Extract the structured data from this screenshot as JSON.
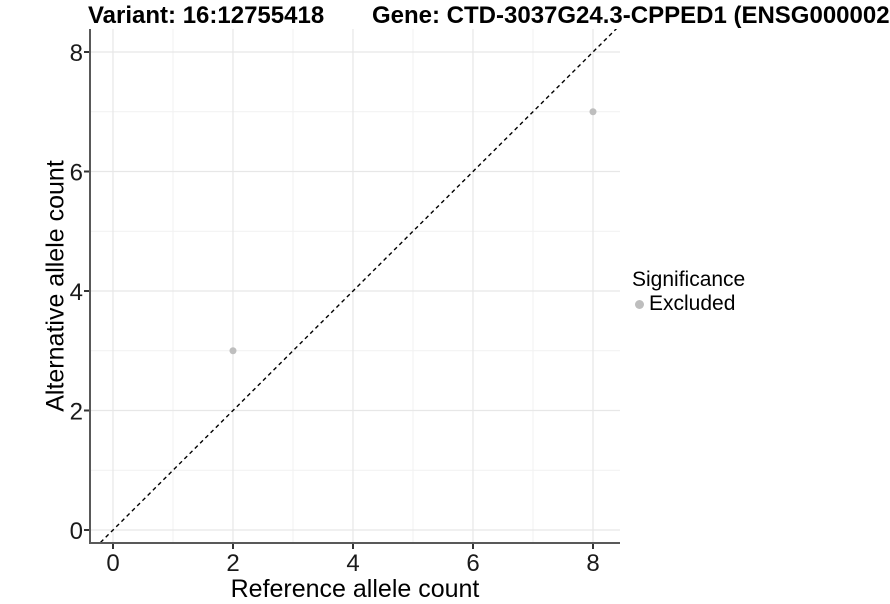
{
  "header": {
    "variant_title": "Variant: 16:12755418",
    "gene_title": "Gene: CTD-3037G24.3-CPPED1 (ENSG000002"
  },
  "colors": {
    "background": "#ffffff",
    "grid_major": "#e7e7e7",
    "grid_minor": "#f1f1f1",
    "axis_line": "#595959",
    "tick_mark": "#333333",
    "tick_label": "#1a1a1a",
    "title_text": "#000000",
    "identity_line": "#000000",
    "excluded_point": "#bebebe"
  },
  "chart_data": {
    "type": "scatter",
    "title": "Variant: 16:12755418  Gene: CTD-3037G24.3-CPPED1 (ENSG000002",
    "xlabel": "Reference allele count",
    "ylabel": "Alternative allele count",
    "xlim": [
      -0.3833,
      8.45
    ],
    "ylim": [
      -0.2176,
      8.3849
    ],
    "x_ticks": [
      0,
      2,
      4,
      6,
      8
    ],
    "y_ticks": [
      0,
      2,
      4,
      6,
      8
    ],
    "x_minor_ticks": [
      1,
      3,
      5,
      7
    ],
    "y_minor_ticks": [
      1,
      3,
      5,
      7
    ],
    "grid": true,
    "identity_line": {
      "equation": "y = x",
      "style": "dashed",
      "color": "#000000"
    },
    "series": [
      {
        "name": "Excluded",
        "color": "#bebebe",
        "points": [
          {
            "x": 2,
            "y": 3
          },
          {
            "x": 8,
            "y": 7
          }
        ]
      }
    ],
    "legend": {
      "title": "Significance",
      "position": "right",
      "entries": [
        {
          "label": "Excluded",
          "color": "#bebebe"
        }
      ]
    }
  }
}
